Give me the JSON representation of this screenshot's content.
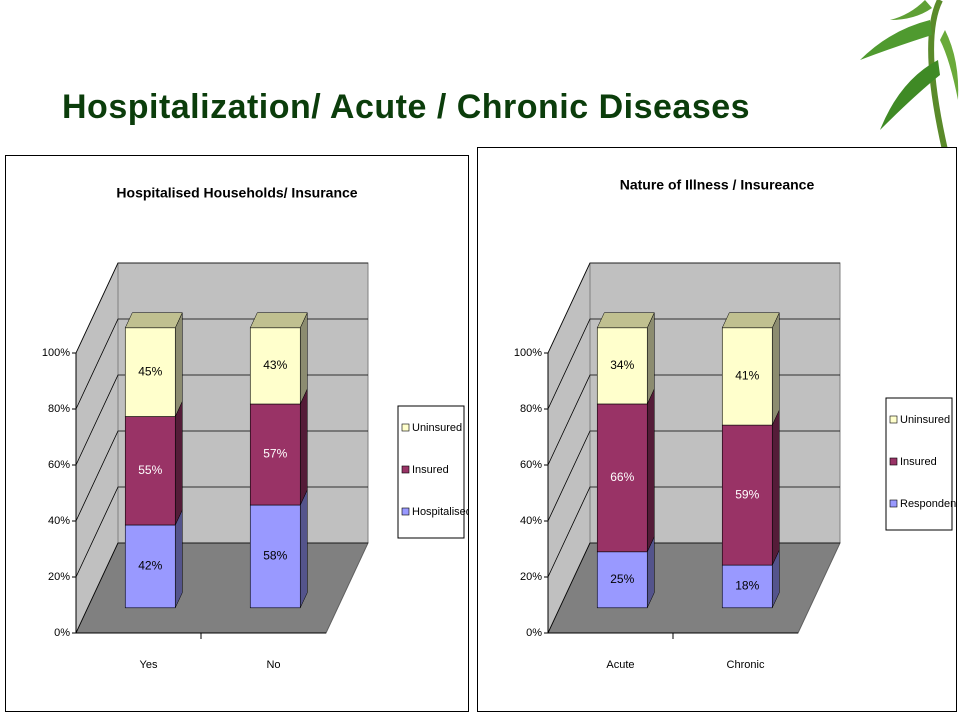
{
  "title": "Hospitalization/ Acute / Chronic Diseases",
  "chart_data": [
    {
      "type": "bar",
      "stacking": "percent",
      "title": "Hospitalised Households/ Insurance",
      "categories": [
        "Yes",
        "No"
      ],
      "series": [
        {
          "name": "Hospitalised",
          "color": "#9999ff",
          "values": [
            42,
            58
          ],
          "value_labels": [
            "42%",
            "58%"
          ]
        },
        {
          "name": "Insured",
          "color": "#993366",
          "values": [
            55,
            57
          ],
          "value_labels": [
            "55%",
            "57%"
          ]
        },
        {
          "name": "Uninsured",
          "color": "#ffffcc",
          "values": [
            45,
            43
          ],
          "value_labels": [
            "45%",
            "43%"
          ]
        }
      ],
      "ylim": [
        0,
        100
      ],
      "yticks": [
        {
          "value": 0,
          "label": "0%"
        },
        {
          "value": 20,
          "label": "20%"
        },
        {
          "value": 40,
          "label": "40%"
        },
        {
          "value": 60,
          "label": "60%"
        },
        {
          "value": 80,
          "label": "80%"
        },
        {
          "value": 100,
          "label": "100%"
        }
      ],
      "grid": true,
      "legend": "right"
    },
    {
      "type": "bar",
      "stacking": "percent",
      "title": "Nature of Illness / Insureance",
      "categories": [
        "Acute",
        "Chronic"
      ],
      "series": [
        {
          "name": "Respondents",
          "color": "#9999ff",
          "values": [
            25,
            18
          ],
          "value_labels": [
            "25%",
            "18%"
          ]
        },
        {
          "name": "Insured",
          "color": "#993366",
          "values": [
            66,
            59
          ],
          "value_labels": [
            "66%",
            "59%"
          ]
        },
        {
          "name": "Uninsured",
          "color": "#ffffcc",
          "values": [
            34,
            41
          ],
          "value_labels": [
            "34%",
            "41%"
          ]
        }
      ],
      "ylim": [
        0,
        100
      ],
      "yticks": [
        {
          "value": 0,
          "label": "0%"
        },
        {
          "value": 20,
          "label": "20%"
        },
        {
          "value": 40,
          "label": "40%"
        },
        {
          "value": 60,
          "label": "60%"
        },
        {
          "value": 80,
          "label": "80%"
        },
        {
          "value": 100,
          "label": "100%"
        }
      ],
      "grid": true,
      "legend": "right"
    }
  ]
}
